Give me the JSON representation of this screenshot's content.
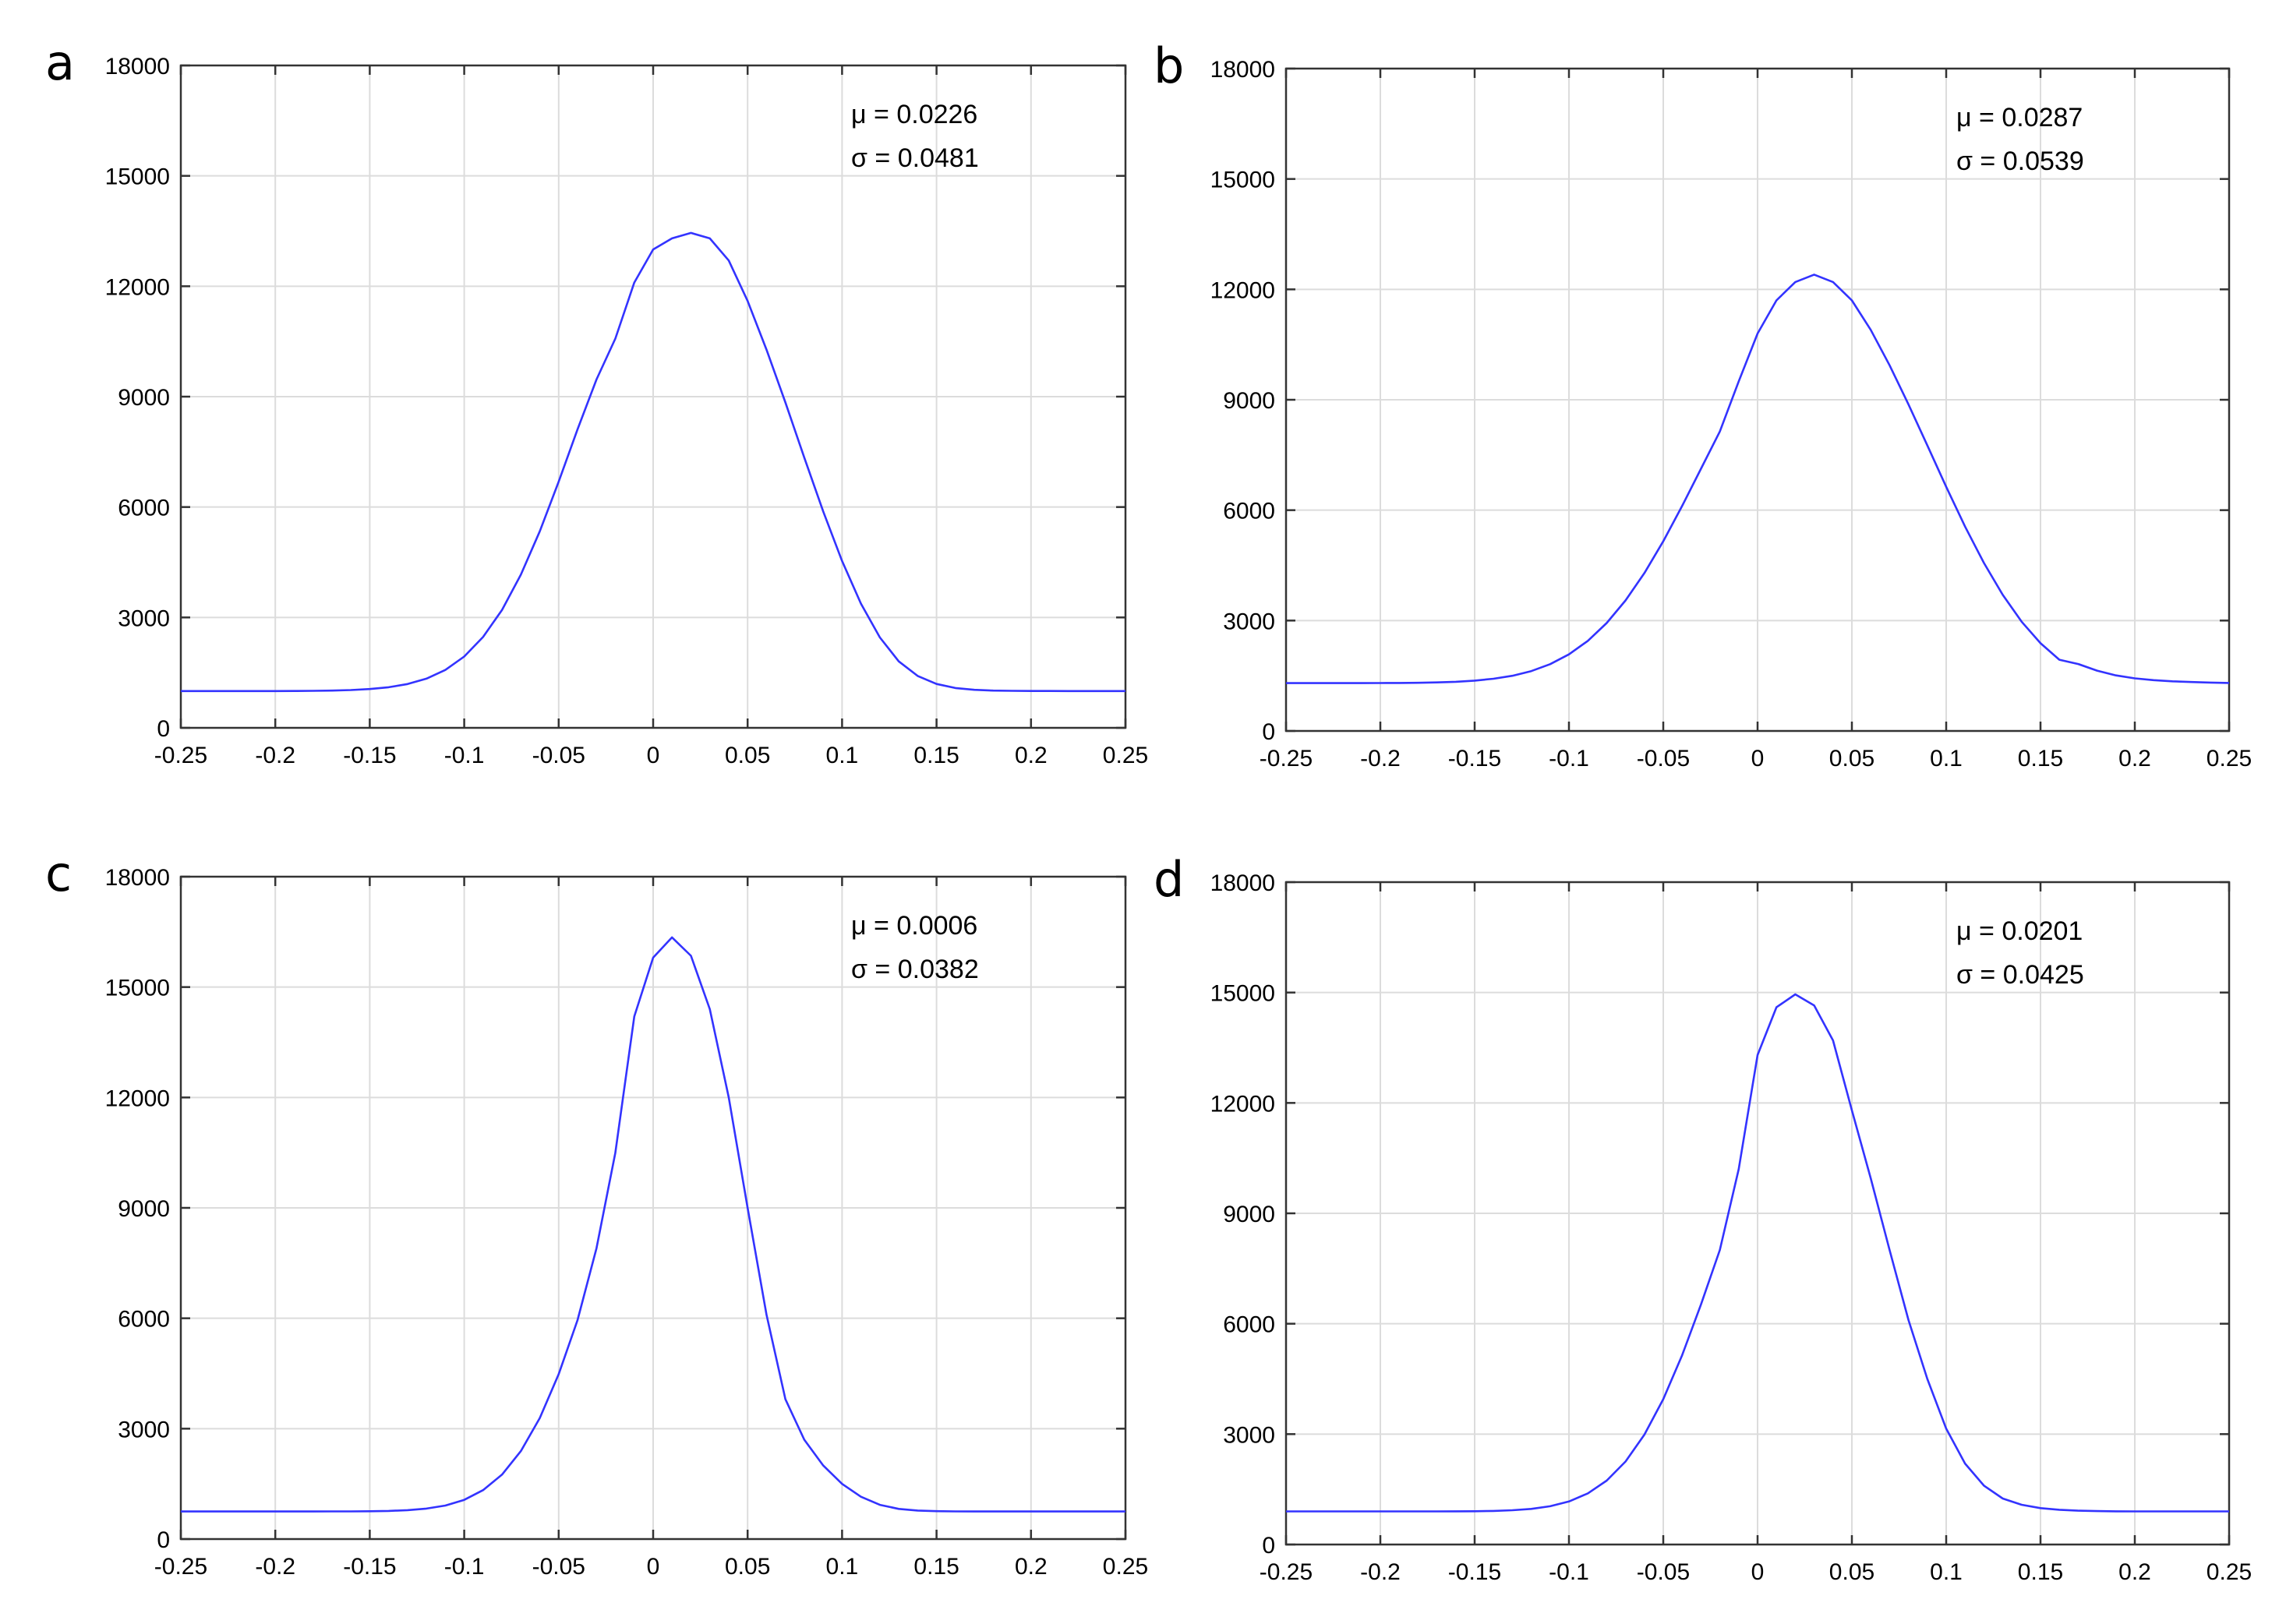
{
  "chart_data": [
    {
      "type": "line",
      "panel_label": "a",
      "stats": {
        "mu": "μ = 0.0226",
        "sigma": "σ = 0.0481"
      },
      "mu_value": 0.0226,
      "sigma_value": 0.0481,
      "xlim": [
        -0.25,
        0.25
      ],
      "ylim": [
        0,
        18000
      ],
      "xticks": [
        "-0.25",
        "-0.2",
        "-0.15",
        "-0.1",
        "-0.05",
        "0",
        "0.05",
        "0.1",
        "0.15",
        "0.2",
        "0.25"
      ],
      "xtick_values": [
        -0.25,
        -0.2,
        -0.15,
        -0.1,
        -0.05,
        0,
        0.05,
        0.1,
        0.15,
        0.2,
        0.25
      ],
      "yticks": [
        "0",
        "3000",
        "6000",
        "9000",
        "12000",
        "15000",
        "18000"
      ],
      "ytick_values": [
        0,
        3000,
        6000,
        9000,
        12000,
        15000,
        18000
      ],
      "grid": true,
      "series": [
        {
          "name": "a",
          "color": "#3333ff",
          "x": [
            -0.25,
            -0.24,
            -0.23,
            -0.22,
            -0.21,
            -0.2,
            -0.19,
            -0.18,
            -0.17,
            -0.16,
            -0.15,
            -0.14,
            -0.13,
            -0.12,
            -0.11,
            -0.1,
            -0.09,
            -0.08,
            -0.07,
            -0.06,
            -0.05,
            -0.04,
            -0.03,
            -0.02,
            -0.01,
            0,
            0.01,
            0.02,
            0.03,
            0.04,
            0.05,
            0.06,
            0.07,
            0.08,
            0.09,
            0.1,
            0.11,
            0.12,
            0.13,
            0.14,
            0.15,
            0.16,
            0.17,
            0.18,
            0.19,
            0.2,
            0.21,
            0.22,
            0.23,
            0.24,
            0.25
          ],
          "y": [
            1000,
            1000,
            1000,
            1000,
            1000,
            1000,
            1002,
            1006,
            1013,
            1027,
            1054,
            1103,
            1190,
            1337,
            1574,
            1938,
            2469,
            3204,
            4164,
            5342,
            6690,
            8112,
            9465,
            10578,
            12100,
            13000,
            13300,
            13450,
            13300,
            12700,
            11600,
            10280,
            8841,
            7344,
            5880,
            4533,
            3375,
            2456,
            1806,
            1411,
            1192,
            1082,
            1034,
            1013,
            1005,
            1002,
            1001,
            1000,
            1000,
            1000,
            1000
          ]
        }
      ]
    },
    {
      "type": "line",
      "panel_label": "b",
      "stats": {
        "mu": "μ = 0.0287",
        "sigma": "σ = 0.0539"
      },
      "mu_value": 0.0287,
      "sigma_value": 0.0539,
      "xlim": [
        -0.25,
        0.25
      ],
      "ylim": [
        0,
        18000
      ],
      "xticks": [
        "-0.25",
        "-0.2",
        "-0.15",
        "-0.1",
        "-0.05",
        "0",
        "0.05",
        "0.1",
        "0.15",
        "0.2",
        "0.25"
      ],
      "xtick_values": [
        -0.25,
        -0.2,
        -0.15,
        -0.1,
        -0.05,
        0,
        0.05,
        0.1,
        0.15,
        0.2,
        0.25
      ],
      "yticks": [
        "0",
        "3000",
        "6000",
        "9000",
        "12000",
        "15000",
        "18000"
      ],
      "ytick_values": [
        0,
        3000,
        6000,
        9000,
        12000,
        15000,
        18000
      ],
      "grid": true,
      "series": [
        {
          "name": "b",
          "color": "#3333ff",
          "x": [
            -0.25,
            -0.24,
            -0.23,
            -0.22,
            -0.21,
            -0.2,
            -0.19,
            -0.18,
            -0.17,
            -0.16,
            -0.15,
            -0.14,
            -0.13,
            -0.12,
            -0.11,
            -0.1,
            -0.09,
            -0.08,
            -0.07,
            -0.06,
            -0.05,
            -0.04,
            -0.03,
            -0.02,
            -0.01,
            0,
            0.01,
            0.02,
            0.03,
            0.04,
            0.05,
            0.06,
            0.07,
            0.08,
            0.09,
            0.1,
            0.11,
            0.12,
            0.13,
            0.14,
            0.15,
            0.16,
            0.17,
            0.18,
            0.19,
            0.2,
            0.21,
            0.22,
            0.23,
            0.24,
            0.25
          ],
          "y": [
            1300,
            1300,
            1300,
            1300,
            1301,
            1302,
            1304,
            1309,
            1319,
            1336,
            1367,
            1418,
            1500,
            1627,
            1815,
            2082,
            2449,
            2933,
            3546,
            4290,
            5154,
            6113,
            7125,
            8138,
            9500,
            10800,
            11700,
            12200,
            12400,
            12200,
            11700,
            10900,
            9936,
            8876,
            7759,
            6634,
            5554,
            4565,
            3698,
            2970,
            2384,
            1935,
            1820,
            1640,
            1510,
            1430,
            1380,
            1350,
            1330,
            1315,
            1305
          ]
        }
      ]
    },
    {
      "type": "line",
      "panel_label": "c",
      "stats": {
        "mu": "μ = 0.0006",
        "sigma": "σ = 0.0382"
      },
      "mu_value": 0.0006,
      "sigma_value": 0.0382,
      "xlim": [
        -0.25,
        0.25
      ],
      "ylim": [
        0,
        18000
      ],
      "xticks": [
        "-0.25",
        "-0.2",
        "-0.15",
        "-0.1",
        "-0.05",
        "0",
        "0.05",
        "0.1",
        "0.15",
        "0.2",
        "0.25"
      ],
      "xtick_values": [
        -0.25,
        -0.2,
        -0.15,
        -0.1,
        -0.05,
        0,
        0.05,
        0.1,
        0.15,
        0.2,
        0.25
      ],
      "yticks": [
        "0",
        "3000",
        "6000",
        "9000",
        "12000",
        "15000",
        "18000"
      ],
      "ytick_values": [
        0,
        3000,
        6000,
        9000,
        12000,
        15000,
        18000
      ],
      "grid": true,
      "series": [
        {
          "name": "c",
          "color": "#3333ff",
          "x": [
            -0.25,
            -0.24,
            -0.23,
            -0.22,
            -0.21,
            -0.2,
            -0.19,
            -0.18,
            -0.17,
            -0.16,
            -0.15,
            -0.14,
            -0.13,
            -0.12,
            -0.11,
            -0.1,
            -0.09,
            -0.08,
            -0.07,
            -0.06,
            -0.05,
            -0.04,
            -0.03,
            -0.02,
            -0.01,
            0,
            0.01,
            0.02,
            0.03,
            0.04,
            0.05,
            0.06,
            0.07,
            0.08,
            0.09,
            0.1,
            0.11,
            0.12,
            0.13,
            0.14,
            0.15,
            0.16,
            0.17,
            0.18,
            0.19,
            0.2,
            0.21,
            0.22,
            0.23,
            0.24,
            0.25
          ],
          "y": [
            750,
            750,
            750,
            750,
            750,
            750,
            750,
            750,
            751,
            752,
            756,
            765,
            785,
            827,
            911,
            1065,
            1329,
            1752,
            2390,
            3290,
            4480,
            5950,
            7900,
            10500,
            14200,
            15800,
            16350,
            15850,
            14400,
            12000,
            9000,
            6100,
            3800,
            2700,
            2000,
            1500,
            1150,
            930,
            820,
            775,
            758,
            752,
            750,
            750,
            750,
            750,
            750,
            750,
            750,
            750,
            750
          ]
        }
      ]
    },
    {
      "type": "line",
      "panel_label": "d",
      "stats": {
        "mu": "μ = 0.0201",
        "sigma": "σ = 0.0425"
      },
      "mu_value": 0.0201,
      "sigma_value": 0.0425,
      "xlim": [
        -0.25,
        0.25
      ],
      "ylim": [
        0,
        18000
      ],
      "xticks": [
        "-0.25",
        "-0.2",
        "-0.15",
        "-0.1",
        "-0.05",
        "0",
        "0.05",
        "0.1",
        "0.15",
        "0.2",
        "0.25"
      ],
      "xtick_values": [
        -0.25,
        -0.2,
        -0.15,
        -0.1,
        -0.05,
        0,
        0.05,
        0.1,
        0.15,
        0.2,
        0.25
      ],
      "yticks": [
        "0",
        "3000",
        "6000",
        "9000",
        "12000",
        "15000",
        "18000"
      ],
      "ytick_values": [
        0,
        3000,
        6000,
        9000,
        12000,
        15000,
        18000
      ],
      "grid": true,
      "series": [
        {
          "name": "d",
          "color": "#3333ff",
          "x": [
            -0.25,
            -0.24,
            -0.23,
            -0.22,
            -0.21,
            -0.2,
            -0.19,
            -0.18,
            -0.17,
            -0.16,
            -0.15,
            -0.14,
            -0.13,
            -0.12,
            -0.11,
            -0.1,
            -0.09,
            -0.08,
            -0.07,
            -0.06,
            -0.05,
            -0.04,
            -0.03,
            -0.02,
            -0.01,
            0,
            0.01,
            0.02,
            0.03,
            0.04,
            0.05,
            0.06,
            0.07,
            0.08,
            0.09,
            0.1,
            0.11,
            0.12,
            0.13,
            0.14,
            0.15,
            0.16,
            0.17,
            0.18,
            0.19,
            0.2,
            0.21,
            0.22,
            0.23,
            0.24,
            0.25
          ],
          "y": [
            900,
            900,
            900,
            900,
            900,
            900,
            900,
            900,
            901,
            902,
            905,
            913,
            931,
            968,
            1040,
            1170,
            1389,
            1737,
            2256,
            2986,
            3950,
            5144,
            6524,
            8005,
            10200,
            13300,
            14600,
            14950,
            14650,
            13700,
            11800,
            9950,
            8000,
            6100,
            4500,
            3150,
            2200,
            1600,
            1250,
            1080,
            990,
            945,
            920,
            908,
            903,
            901,
            900,
            900,
            900,
            900,
            900
          ]
        }
      ]
    }
  ]
}
